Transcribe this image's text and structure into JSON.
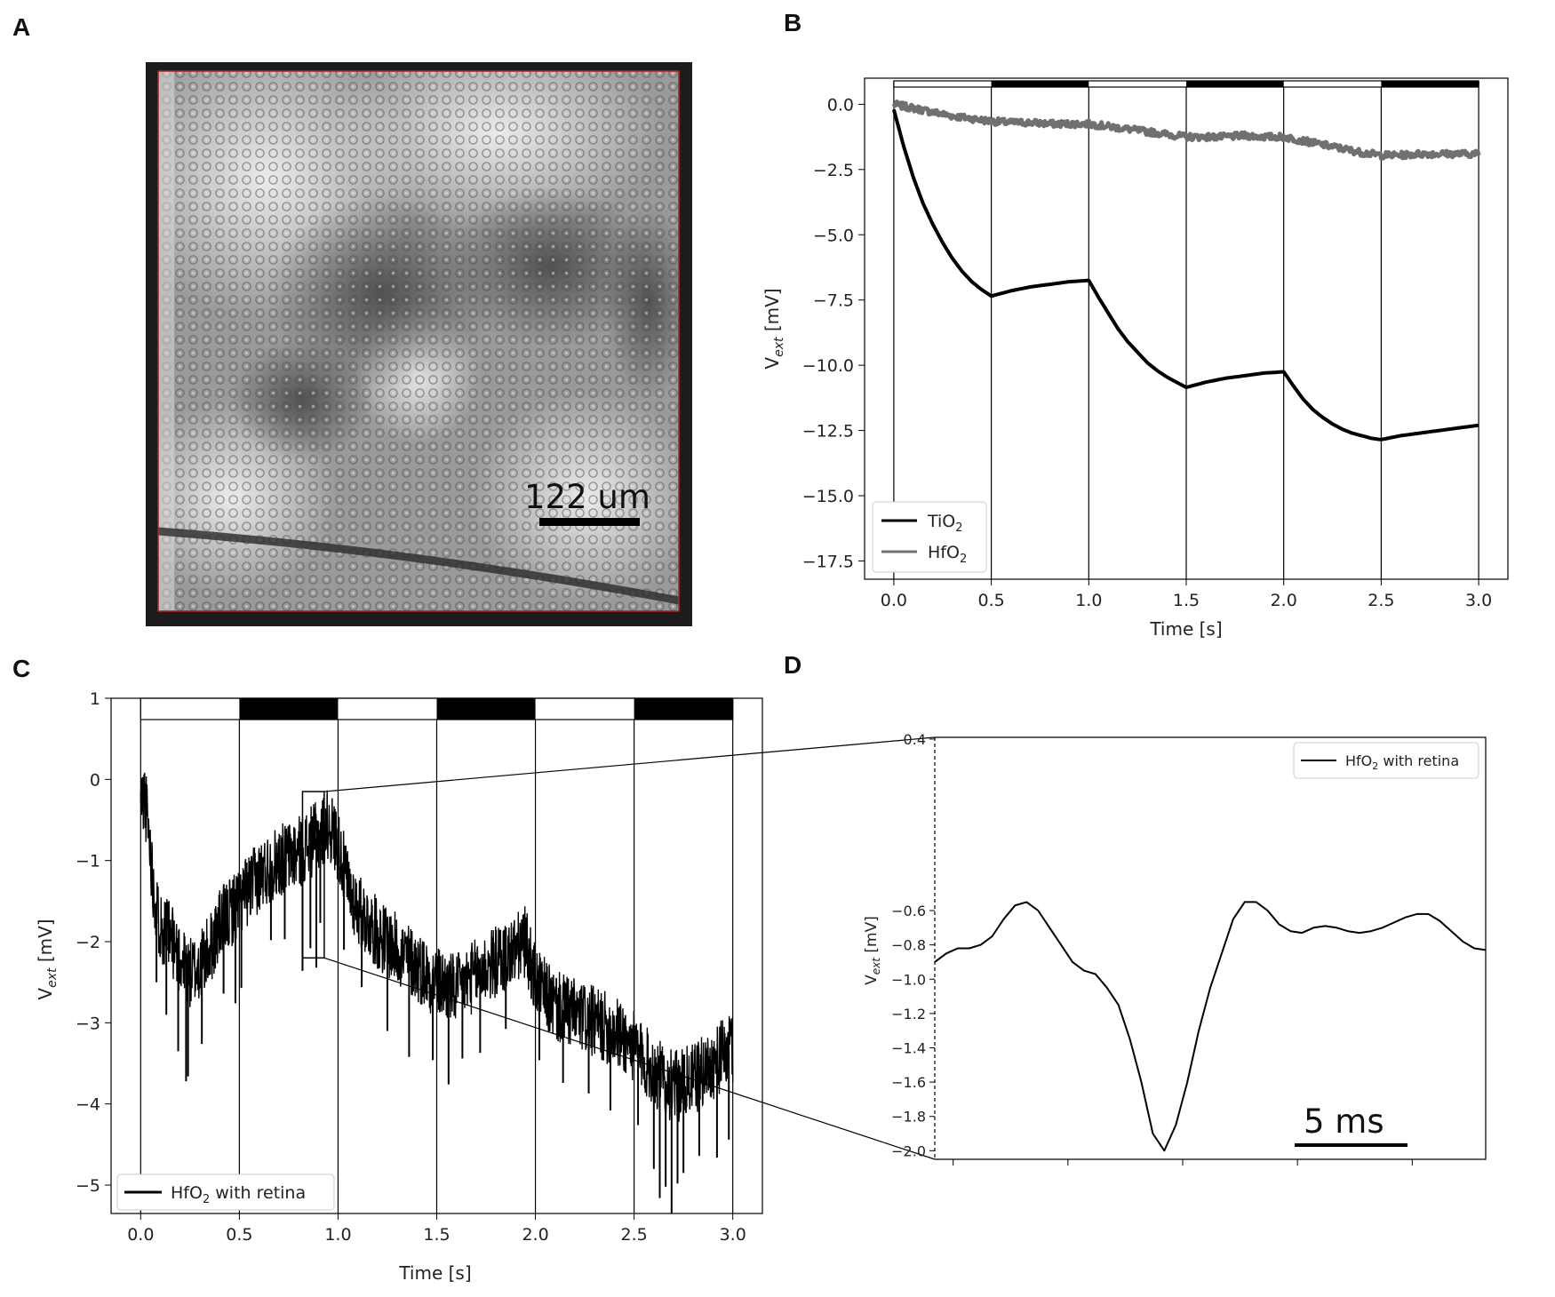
{
  "panel_labels": [
    "A",
    "B",
    "C",
    "D"
  ],
  "image_a": {
    "scalebar_label": "122 um",
    "border_color": "#b22222"
  },
  "chart_data": [
    {
      "panel": "B",
      "type": "line",
      "xlabel": "Time [s]",
      "ylabel_main": "V",
      "ylabel_sub": "ext",
      "ylabel_unit": " [mV]",
      "xlim": [
        -0.15,
        3.15
      ],
      "ylim": [
        -18.2,
        1.0
      ],
      "xticks": [
        0.0,
        0.5,
        1.0,
        1.5,
        2.0,
        2.5,
        3.0
      ],
      "xtick_labels": [
        "0.0",
        "0.5",
        "1.0",
        "1.5",
        "2.0",
        "2.5",
        "3.0"
      ],
      "yticks": [
        0.0,
        -2.5,
        -5.0,
        -7.5,
        -10.0,
        -12.5,
        -15.0,
        -17.5
      ],
      "ytick_labels": [
        "0.0",
        "−2.5",
        "−5.0",
        "−7.5",
        "−10.0",
        "−12.5",
        "−15.0",
        "−17.5"
      ],
      "stimulus_lines": [
        0.0,
        0.5,
        1.0,
        1.5,
        2.0,
        2.5,
        3.0
      ],
      "stimulus_dark_segments": [
        [
          0.5,
          1.0
        ],
        [
          1.5,
          2.0
        ],
        [
          2.5,
          3.0
        ]
      ],
      "legend": {
        "placement": "lower-left"
      },
      "series": [
        {
          "name_main": "TiO",
          "name_sub": "2",
          "color": "#000000",
          "x": [
            0.0,
            0.05,
            0.1,
            0.15,
            0.2,
            0.25,
            0.3,
            0.35,
            0.4,
            0.45,
            0.5,
            0.6,
            0.7,
            0.8,
            0.9,
            1.0,
            1.05,
            1.1,
            1.15,
            1.2,
            1.25,
            1.3,
            1.35,
            1.4,
            1.45,
            1.5,
            1.6,
            1.7,
            1.8,
            1.9,
            2.0,
            2.05,
            2.1,
            2.15,
            2.2,
            2.25,
            2.3,
            2.35,
            2.4,
            2.45,
            2.5,
            2.6,
            2.7,
            2.8,
            2.9,
            3.0
          ],
          "y": [
            -0.2,
            -1.6,
            -2.8,
            -3.8,
            -4.6,
            -5.3,
            -5.9,
            -6.4,
            -6.8,
            -7.1,
            -7.35,
            -7.15,
            -7.0,
            -6.9,
            -6.8,
            -6.75,
            -7.4,
            -8.0,
            -8.6,
            -9.1,
            -9.5,
            -9.9,
            -10.2,
            -10.45,
            -10.65,
            -10.85,
            -10.65,
            -10.5,
            -10.4,
            -10.3,
            -10.25,
            -10.8,
            -11.3,
            -11.7,
            -12.0,
            -12.25,
            -12.45,
            -12.6,
            -12.7,
            -12.8,
            -12.85,
            -12.7,
            -12.6,
            -12.5,
            -12.4,
            -12.3
          ]
        },
        {
          "name_main": "HfO",
          "name_sub": "2",
          "color": "#707070",
          "x": [
            0.0,
            0.1,
            0.2,
            0.3,
            0.4,
            0.5,
            0.6,
            0.7,
            0.8,
            0.9,
            1.0,
            1.1,
            1.2,
            1.3,
            1.4,
            1.5,
            1.6,
            1.7,
            1.8,
            1.9,
            2.0,
            2.1,
            2.2,
            2.3,
            2.4,
            2.5,
            2.6,
            2.7,
            2.8,
            2.9,
            3.0
          ],
          "y": [
            0.0,
            -0.15,
            -0.3,
            -0.45,
            -0.55,
            -0.65,
            -0.7,
            -0.7,
            -0.75,
            -0.75,
            -0.75,
            -0.85,
            -0.95,
            -1.05,
            -1.15,
            -1.25,
            -1.25,
            -1.25,
            -1.2,
            -1.25,
            -1.25,
            -1.4,
            -1.55,
            -1.7,
            -1.85,
            -1.95,
            -1.95,
            -1.9,
            -1.9,
            -1.9,
            -1.9
          ]
        }
      ]
    },
    {
      "panel": "C",
      "type": "line",
      "xlabel": "Time [s]",
      "ylabel_main": "V",
      "ylabel_sub": "ext",
      "ylabel_unit": " [mV]",
      "xlim": [
        -0.15,
        3.15
      ],
      "ylim": [
        -5.35,
        1.0
      ],
      "xticks": [
        0.0,
        0.5,
        1.0,
        1.5,
        2.0,
        2.5,
        3.0
      ],
      "xtick_labels": [
        "0.0",
        "0.5",
        "1.0",
        "1.5",
        "2.0",
        "2.5",
        "3.0"
      ],
      "yticks": [
        1,
        0,
        -1,
        -2,
        -3,
        -4,
        -5
      ],
      "ytick_labels": [
        "1",
        "0",
        "−1",
        "−2",
        "−3",
        "−4",
        "−5"
      ],
      "stimulus_lines": [
        0.0,
        0.5,
        1.0,
        1.5,
        2.0,
        2.5,
        3.0
      ],
      "stimulus_dark_segments": [
        [
          0.5,
          1.0
        ],
        [
          1.5,
          2.0
        ],
        [
          2.5,
          3.0
        ]
      ],
      "zoom_box": {
        "x": [
          0.82,
          0.93
        ],
        "y": [
          -2.2,
          -0.15
        ]
      },
      "legend": {
        "placement": "lower-left"
      },
      "series": [
        {
          "name_main": "HfO",
          "name_sub": "2",
          "name_suffix": " with retina",
          "color": "#000000",
          "x": [
            0.0,
            0.02,
            0.04,
            0.06,
            0.08,
            0.1,
            0.13,
            0.16,
            0.2,
            0.25,
            0.3,
            0.35,
            0.4,
            0.5,
            0.6,
            0.7,
            0.8,
            0.9,
            0.95,
            1.0,
            1.05,
            1.1,
            1.2,
            1.3,
            1.4,
            1.5,
            1.6,
            1.7,
            1.8,
            1.9,
            1.95,
            2.0,
            2.1,
            2.2,
            2.3,
            2.4,
            2.5,
            2.6,
            2.7,
            2.8,
            2.9,
            3.0
          ],
          "y": [
            -0.3,
            -0.2,
            -0.6,
            -1.2,
            -1.6,
            -1.8,
            -1.9,
            -2.0,
            -2.2,
            -2.4,
            -2.3,
            -2.1,
            -1.8,
            -1.5,
            -1.2,
            -1.0,
            -0.9,
            -0.7,
            -0.55,
            -0.8,
            -1.3,
            -1.6,
            -1.9,
            -2.1,
            -2.3,
            -2.5,
            -2.6,
            -2.4,
            -2.25,
            -2.1,
            -2.0,
            -2.5,
            -2.8,
            -2.9,
            -3.0,
            -3.1,
            -3.3,
            -3.6,
            -3.8,
            -3.7,
            -3.5,
            -3.3
          ],
          "spike_times": [
            0.08,
            0.13,
            0.19,
            0.23,
            0.24,
            0.31,
            0.42,
            0.48,
            0.51,
            0.66,
            0.73,
            0.82,
            0.86,
            0.89,
            0.91,
            1.03,
            1.12,
            1.25,
            1.36,
            1.48,
            1.56,
            1.63,
            1.72,
            1.85,
            2.02,
            2.14,
            2.27,
            2.38,
            2.52,
            2.6,
            2.63,
            2.66,
            2.69,
            2.72,
            2.75,
            2.83,
            2.92,
            2.98
          ],
          "spike_depths": [
            0.6,
            0.7,
            0.9,
            1.1,
            1.0,
            0.7,
            0.6,
            0.9,
            0.8,
            0.6,
            0.7,
            1.2,
            1.0,
            1.3,
            0.8,
            0.7,
            0.6,
            0.8,
            0.9,
            0.7,
            0.9,
            0.6,
            0.7,
            0.6,
            0.6,
            0.6,
            0.6,
            0.7,
            0.6,
            0.9,
            1.2,
            1.0,
            1.3,
            0.9,
            0.8,
            0.7,
            0.9,
            0.8
          ],
          "noise_amplitude": 0.45
        }
      ]
    },
    {
      "panel": "D",
      "type": "line",
      "ylabel_main": "V",
      "ylabel_sub": "ext",
      "ylabel_unit": " [mV]",
      "xlim": [
        0,
        24
      ],
      "ylim": [
        -2.05,
        0.41
      ],
      "yticks": [
        0.4,
        -0.6,
        -0.8,
        -1.0,
        -1.2,
        -1.4,
        -1.6,
        -1.8,
        -2.0
      ],
      "ytick_labels": [
        "0.4",
        "−0.6",
        "−0.8",
        "−1.0",
        "−1.2",
        "−1.4",
        "−1.6",
        "−1.8",
        "−2.0"
      ],
      "xticks": [
        0.8,
        5.8,
        10.8,
        15.8,
        20.8
      ],
      "scalebar_label": "5 ms",
      "legend": {
        "placement": "upper-right"
      },
      "series": [
        {
          "name_main": "HfO",
          "name_sub": "2",
          "name_suffix": " with retina",
          "color": "#000000",
          "x": [
            0.0,
            0.5,
            1.0,
            1.5,
            2.0,
            2.5,
            3.0,
            3.5,
            4.0,
            4.5,
            5.0,
            5.5,
            6.0,
            6.5,
            7.0,
            7.5,
            8.0,
            8.5,
            9.0,
            9.5,
            10.0,
            10.5,
            11.0,
            11.5,
            12.0,
            12.5,
            13.0,
            13.5,
            14.0,
            14.5,
            15.0,
            15.5,
            16.0,
            16.5,
            17.0,
            17.5,
            18.0,
            18.5,
            19.0,
            19.5,
            20.0,
            20.5,
            21.0,
            21.5,
            22.0,
            22.5,
            23.0,
            23.5,
            24.0
          ],
          "y": [
            -0.9,
            -0.85,
            -0.82,
            -0.82,
            -0.8,
            -0.75,
            -0.65,
            -0.57,
            -0.55,
            -0.6,
            -0.7,
            -0.8,
            -0.9,
            -0.95,
            -0.97,
            -1.05,
            -1.15,
            -1.35,
            -1.6,
            -1.9,
            -2.0,
            -1.85,
            -1.6,
            -1.3,
            -1.05,
            -0.85,
            -0.65,
            -0.55,
            -0.55,
            -0.6,
            -0.68,
            -0.72,
            -0.73,
            -0.7,
            -0.69,
            -0.7,
            -0.72,
            -0.73,
            -0.72,
            -0.7,
            -0.67,
            -0.64,
            -0.62,
            -0.62,
            -0.66,
            -0.72,
            -0.78,
            -0.82,
            -0.83
          ]
        }
      ]
    }
  ]
}
